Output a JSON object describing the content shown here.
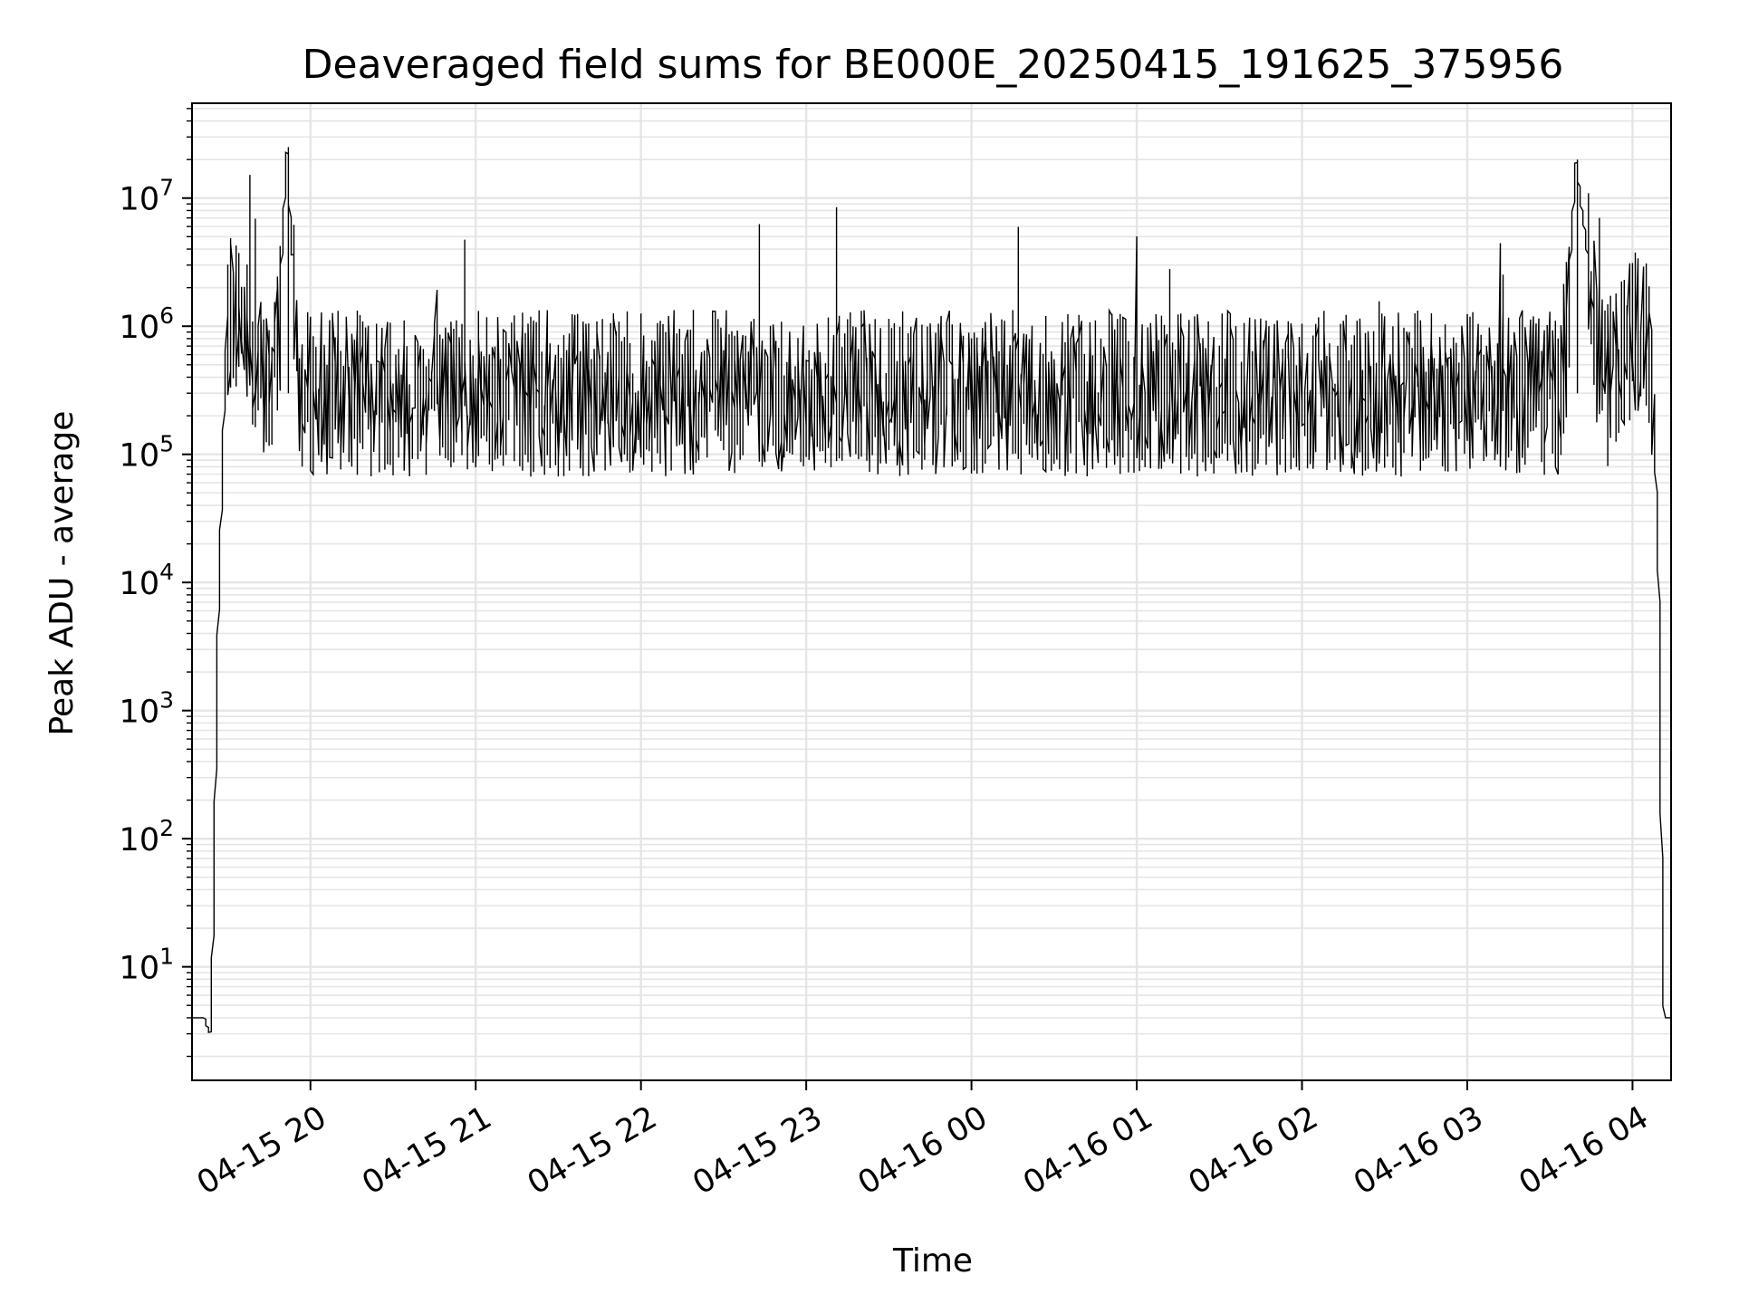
{
  "chart_data": {
    "type": "line",
    "title": "Deaveraged field sums for BE000E_20250415_191625_375956",
    "xlabel": "Time",
    "ylabel": "Peak ADU - average",
    "y_scale": "log",
    "ylim": [
      1.3,
      55000000
    ],
    "xlim": [
      "2025-04-15 19:17",
      "2025-04-16 04:14"
    ],
    "x_ticks": [
      {
        "value": "2025-04-15 20:00",
        "label": "04-15 20"
      },
      {
        "value": "2025-04-15 21:00",
        "label": "04-15 21"
      },
      {
        "value": "2025-04-15 22:00",
        "label": "04-15 22"
      },
      {
        "value": "2025-04-15 23:00",
        "label": "04-15 23"
      },
      {
        "value": "2025-04-16 00:00",
        "label": "04-16 00"
      },
      {
        "value": "2025-04-16 01:00",
        "label": "04-16 01"
      },
      {
        "value": "2025-04-16 02:00",
        "label": "04-16 02"
      },
      {
        "value": "2025-04-16 03:00",
        "label": "04-16 03"
      },
      {
        "value": "2025-04-16 04:00",
        "label": "04-16 04"
      }
    ],
    "y_ticks": [
      {
        "value": 10,
        "base": "10",
        "exp": "1"
      },
      {
        "value": 100,
        "base": "10",
        "exp": "2"
      },
      {
        "value": 1000,
        "base": "10",
        "exp": "3"
      },
      {
        "value": 10000,
        "base": "10",
        "exp": "4"
      },
      {
        "value": 100000,
        "base": "10",
        "exp": "5"
      },
      {
        "value": 1000000,
        "base": "10",
        "exp": "6"
      },
      {
        "value": 10000000,
        "base": "10",
        "exp": "7"
      }
    ],
    "grid": true,
    "line_color": "#000000",
    "grid_color": "#e5e5e5",
    "series": [
      {
        "x": [
          "2025-04-15 19:17",
          "2025-04-15 19:22",
          "2025-04-15 19:24",
          "2025-04-15 19:25",
          "2025-04-15 19:27",
          "2025-04-15 19:30",
          "2025-04-15 19:33",
          "2025-04-15 19:36",
          "2025-04-15 19:40",
          "2025-04-15 19:44",
          "2025-04-15 19:48",
          "2025-04-15 19:52",
          "2025-04-15 19:56",
          "2025-04-16 00:00",
          "2025-04-16 00:36",
          "2025-04-16 03:35",
          "2025-04-16 03:40",
          "2025-04-16 03:50",
          "2025-04-16 03:58",
          "2025-04-16 04:02",
          "2025-04-16 04:06",
          "2025-04-16 04:08",
          "2025-04-16 04:10",
          "2025-04-16 04:11",
          "2025-04-16 04:12",
          "2025-04-16 04:14"
        ],
        "y": [
          4,
          4,
          3,
          15,
          5000,
          900000,
          1500000,
          1000000,
          600000,
          300000,
          500000,
          25000000,
          300000,
          300000,
          300000,
          300000,
          20000000,
          300000,
          700000,
          1000000,
          700000,
          300000,
          10000,
          100,
          4,
          4
        ]
      }
    ],
    "notes_visible": "noisy trace around 1e5–1e6 with spikes up to ~2.5e7"
  }
}
